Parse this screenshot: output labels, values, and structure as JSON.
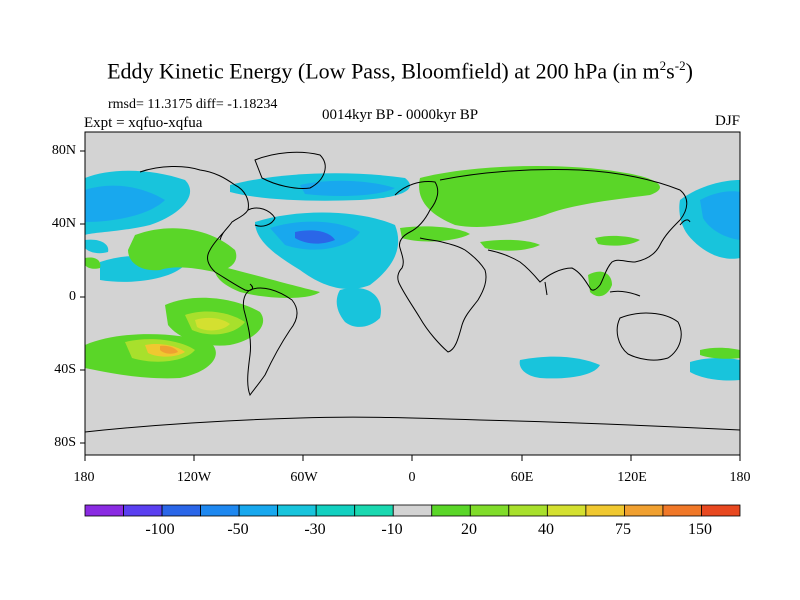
{
  "title": "Eddy Kinetic Energy (Low Pass, Bloomfield) at 200 hPa (in m",
  "title_sup1": "2",
  "title_mid": "s",
  "title_sup2": "-2",
  "title_end": ")",
  "stats": "rmsd= 11.3175 diff= -1.18234",
  "experiment": "Expt = xqfuo-xqfua",
  "period": "0014kyr BP - 0000kyr BP",
  "season": "DJF",
  "lat_labels": [
    "80N",
    "40N",
    "0",
    "40S",
    "80S"
  ],
  "lon_labels": [
    "180",
    "120W",
    "60W",
    "0",
    "60E",
    "120E",
    "180"
  ],
  "colorbar": {
    "labels": [
      "-100",
      "-50",
      "-30",
      "-10",
      "20",
      "40",
      "75",
      "150"
    ],
    "colors": [
      "#8a2be2",
      "#5a3ff0",
      "#2a66e8",
      "#1e88f0",
      "#18a8ee",
      "#18c4dc",
      "#12d0c0",
      "#1ad8b0",
      "#d3d3d3",
      "#5ad628",
      "#80dc2a",
      "#a8e02c",
      "#d4e030",
      "#f0c830",
      "#f0a030",
      "#f07828",
      "#e84820"
    ]
  },
  "colors": {
    "land_bg": "#d3d3d3",
    "coast": "#000000"
  }
}
